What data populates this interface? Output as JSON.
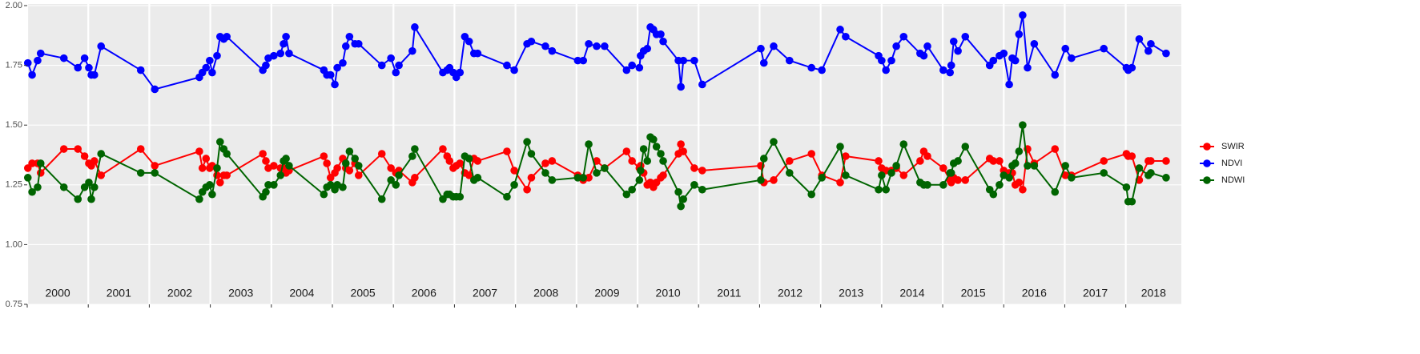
{
  "chart_data": {
    "type": "line",
    "legend": "right",
    "grid": true,
    "ylim": [
      0.75,
      2.0
    ],
    "yticks": [
      {
        "value": 0.75,
        "label": "0.75"
      },
      {
        "value": 1.0,
        "label": "1.00"
      },
      {
        "value": 1.25,
        "label": "1.25"
      },
      {
        "value": 1.5,
        "label": "1.50"
      },
      {
        "value": 1.75,
        "label": "1.75"
      },
      {
        "value": 2.0,
        "label": "2.00"
      }
    ],
    "xlim": [
      2000,
      2018.91
    ],
    "xticks": [
      2000,
      2001,
      2002,
      2003,
      2004,
      2005,
      2006,
      2007,
      2008,
      2009,
      2010,
      2011,
      2012,
      2013,
      2014,
      2015,
      2016,
      2017,
      2018
    ],
    "x": [
      2000.01,
      2000.08,
      2000.17,
      2000.22,
      2000.6,
      2000.83,
      2000.94,
      2001.01,
      2001.05,
      2001.1,
      2001.21,
      2001.86,
      2002.09,
      2002.82,
      2002.87,
      2002.93,
      2002.99,
      2003.03,
      2003.11,
      2003.16,
      2003.22,
      2003.27,
      2003.86,
      2003.91,
      2003.95,
      2004.04,
      2004.15,
      2004.2,
      2004.24,
      2004.29,
      2004.86,
      2004.91,
      2004.97,
      2005.04,
      2005.08,
      2005.17,
      2005.22,
      2005.28,
      2005.37,
      2005.43,
      2005.81,
      2005.96,
      2006.04,
      2006.09,
      2006.31,
      2006.35,
      2006.81,
      2006.88,
      2006.92,
      2006.98,
      2007.03,
      2007.09,
      2007.17,
      2007.24,
      2007.32,
      2007.38,
      2007.86,
      2007.98,
      2008.19,
      2008.26,
      2008.49,
      2008.6,
      2009.02,
      2009.11,
      2009.2,
      2009.33,
      2009.46,
      2009.82,
      2009.91,
      2010.03,
      2010.05,
      2010.1,
      2010.16,
      2010.21,
      2010.26,
      2010.31,
      2010.38,
      2010.42,
      2010.67,
      2010.71,
      2010.75,
      2010.93,
      2011.06,
      2012.02,
      2012.07,
      2012.23,
      2012.49,
      2012.85,
      2013.02,
      2013.32,
      2013.41,
      2013.95,
      2014.0,
      2014.07,
      2014.16,
      2014.24,
      2014.36,
      2014.63,
      2014.69,
      2014.75,
      2015.01,
      2015.12,
      2015.14,
      2015.18,
      2015.25,
      2015.37,
      2015.77,
      2015.83,
      2015.93,
      2016.0,
      2016.09,
      2016.14,
      2016.19,
      2016.25,
      2016.31,
      2016.39,
      2016.5,
      2016.84,
      2017.01,
      2017.11,
      2017.64,
      2018.01,
      2018.04,
      2018.1,
      2018.22,
      2018.37,
      2018.41,
      2018.66
    ],
    "series": [
      {
        "name": "SWIR",
        "color": "#ff0000",
        "values": [
          1.32,
          1.34,
          1.34,
          1.3,
          1.4,
          1.4,
          1.37,
          1.34,
          1.33,
          1.35,
          1.29,
          1.4,
          1.33,
          1.39,
          1.32,
          1.36,
          1.32,
          1.33,
          1.29,
          1.26,
          1.29,
          1.29,
          1.38,
          1.35,
          1.32,
          1.33,
          1.32,
          1.32,
          1.3,
          1.31,
          1.37,
          1.34,
          1.28,
          1.3,
          1.32,
          1.36,
          1.32,
          1.31,
          1.34,
          1.29,
          1.38,
          1.32,
          1.3,
          1.31,
          1.26,
          1.28,
          1.4,
          1.37,
          1.35,
          1.32,
          1.33,
          1.34,
          1.3,
          1.29,
          1.36,
          1.35,
          1.39,
          1.31,
          1.23,
          1.28,
          1.34,
          1.35,
          1.29,
          1.27,
          1.28,
          1.35,
          1.32,
          1.39,
          1.35,
          1.32,
          1.33,
          1.3,
          1.25,
          1.26,
          1.24,
          1.26,
          1.28,
          1.29,
          1.38,
          1.42,
          1.39,
          1.32,
          1.31,
          1.33,
          1.26,
          1.27,
          1.35,
          1.38,
          1.29,
          1.26,
          1.37,
          1.35,
          1.32,
          1.31,
          1.31,
          1.32,
          1.29,
          1.35,
          1.39,
          1.37,
          1.32,
          1.27,
          1.26,
          1.28,
          1.27,
          1.27,
          1.36,
          1.35,
          1.35,
          1.31,
          1.3,
          1.3,
          1.25,
          1.26,
          1.23,
          1.4,
          1.34,
          1.4,
          1.29,
          1.29,
          1.35,
          1.38,
          1.37,
          1.37,
          1.27,
          1.35,
          1.35,
          1.35
        ]
      },
      {
        "name": "NDVI",
        "color": "#0000ff",
        "values": [
          1.76,
          1.71,
          1.77,
          1.8,
          1.78,
          1.74,
          1.78,
          1.74,
          1.71,
          1.71,
          1.83,
          1.73,
          1.65,
          1.7,
          1.72,
          1.74,
          1.77,
          1.72,
          1.79,
          1.87,
          1.86,
          1.87,
          1.73,
          1.75,
          1.78,
          1.79,
          1.8,
          1.84,
          1.87,
          1.8,
          1.73,
          1.71,
          1.71,
          1.67,
          1.74,
          1.76,
          1.83,
          1.87,
          1.84,
          1.84,
          1.75,
          1.78,
          1.72,
          1.75,
          1.81,
          1.91,
          1.72,
          1.73,
          1.74,
          1.72,
          1.7,
          1.72,
          1.87,
          1.85,
          1.8,
          1.8,
          1.75,
          1.73,
          1.84,
          1.85,
          1.83,
          1.81,
          1.77,
          1.77,
          1.84,
          1.83,
          1.83,
          1.73,
          1.75,
          1.74,
          1.79,
          1.81,
          1.82,
          1.91,
          1.9,
          1.88,
          1.88,
          1.85,
          1.77,
          1.66,
          1.77,
          1.77,
          1.67,
          1.82,
          1.76,
          1.83,
          1.77,
          1.74,
          1.73,
          1.9,
          1.87,
          1.79,
          1.77,
          1.73,
          1.77,
          1.83,
          1.87,
          1.8,
          1.79,
          1.83,
          1.73,
          1.72,
          1.75,
          1.85,
          1.81,
          1.87,
          1.75,
          1.77,
          1.79,
          1.8,
          1.67,
          1.78,
          1.77,
          1.88,
          1.96,
          1.74,
          1.84,
          1.71,
          1.82,
          1.78,
          1.82,
          1.74,
          1.73,
          1.74,
          1.86,
          1.81,
          1.84,
          1.8
        ]
      },
      {
        "name": "NDWI",
        "color": "#006400",
        "values": [
          1.28,
          1.22,
          1.24,
          1.34,
          1.24,
          1.19,
          1.24,
          1.26,
          1.19,
          1.24,
          1.38,
          1.3,
          1.3,
          1.19,
          1.22,
          1.24,
          1.25,
          1.21,
          1.32,
          1.43,
          1.4,
          1.38,
          1.2,
          1.22,
          1.25,
          1.25,
          1.29,
          1.35,
          1.36,
          1.33,
          1.21,
          1.24,
          1.25,
          1.23,
          1.25,
          1.24,
          1.34,
          1.39,
          1.36,
          1.33,
          1.19,
          1.27,
          1.25,
          1.29,
          1.37,
          1.4,
          1.19,
          1.21,
          1.21,
          1.2,
          1.2,
          1.2,
          1.37,
          1.36,
          1.27,
          1.28,
          1.2,
          1.25,
          1.43,
          1.38,
          1.3,
          1.27,
          1.28,
          1.28,
          1.42,
          1.3,
          1.32,
          1.21,
          1.23,
          1.27,
          1.31,
          1.4,
          1.35,
          1.45,
          1.44,
          1.41,
          1.38,
          1.35,
          1.22,
          1.16,
          1.19,
          1.25,
          1.23,
          1.27,
          1.36,
          1.43,
          1.3,
          1.21,
          1.28,
          1.41,
          1.29,
          1.23,
          1.29,
          1.23,
          1.3,
          1.33,
          1.42,
          1.26,
          1.25,
          1.25,
          1.25,
          1.3,
          1.3,
          1.34,
          1.35,
          1.41,
          1.23,
          1.21,
          1.25,
          1.29,
          1.28,
          1.33,
          1.34,
          1.39,
          1.5,
          1.33,
          1.33,
          1.22,
          1.33,
          1.28,
          1.3,
          1.24,
          1.18,
          1.18,
          1.32,
          1.29,
          1.3,
          1.28
        ]
      }
    ]
  }
}
